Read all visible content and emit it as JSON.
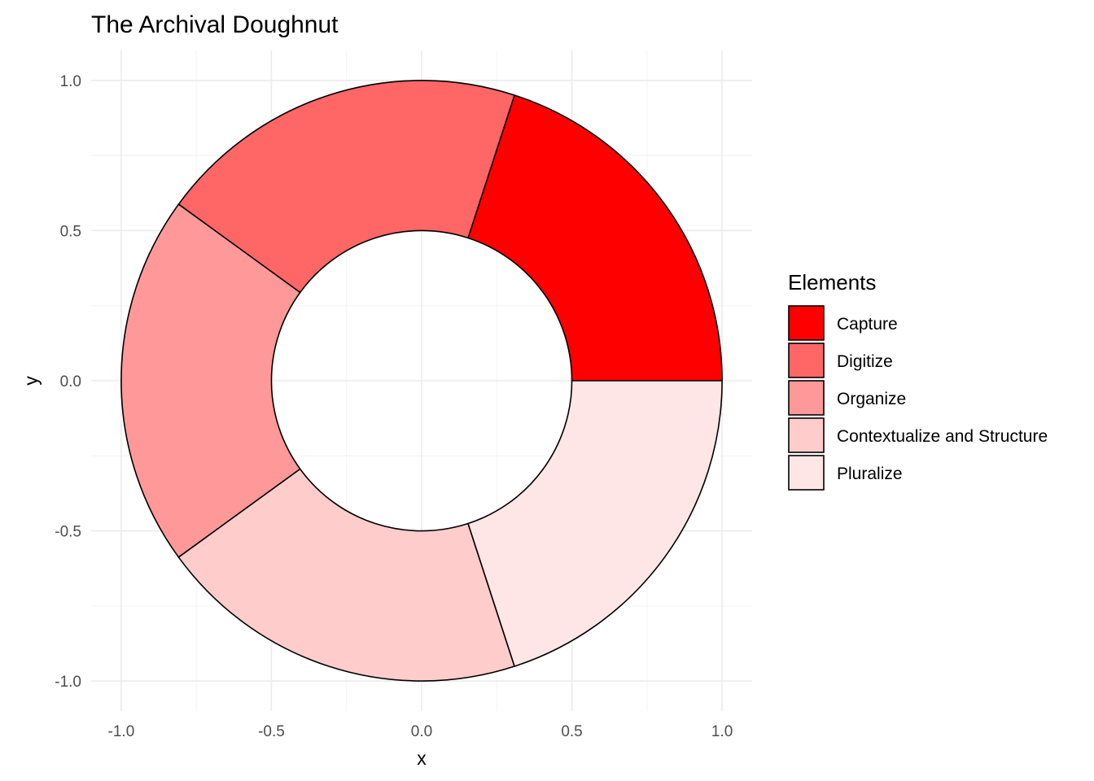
{
  "chart_data": {
    "type": "pie",
    "variant": "doughnut",
    "title": "The Archival Doughnut",
    "xlabel": "x",
    "ylabel": "y",
    "xlim": [
      -1.1,
      1.1
    ],
    "ylim": [
      -1.1,
      1.1
    ],
    "xticks": [
      "-1.0",
      "-0.5",
      "0.0",
      "0.5",
      "1.0"
    ],
    "yticks": [
      "-1.0",
      "-0.5",
      "0.0",
      "0.5",
      "1.0"
    ],
    "outer_radius": 1.0,
    "inner_radius": 0.5,
    "grid": true,
    "legend": {
      "title": "Elements",
      "position": "right"
    },
    "slices": [
      {
        "label": "Capture",
        "start_deg": 0,
        "end_deg": 72,
        "color": "#ff0000"
      },
      {
        "label": "Digitize",
        "start_deg": 72,
        "end_deg": 144,
        "color": "#ff6666"
      },
      {
        "label": "Organize",
        "start_deg": 144,
        "end_deg": 216,
        "color": "#ff9999"
      },
      {
        "label": "Contextualize and Structure",
        "start_deg": 216,
        "end_deg": 288,
        "color": "#ffcccc"
      },
      {
        "label": "Pluralize",
        "start_deg": 288,
        "end_deg": 360,
        "color": "#ffe6e6"
      }
    ]
  }
}
